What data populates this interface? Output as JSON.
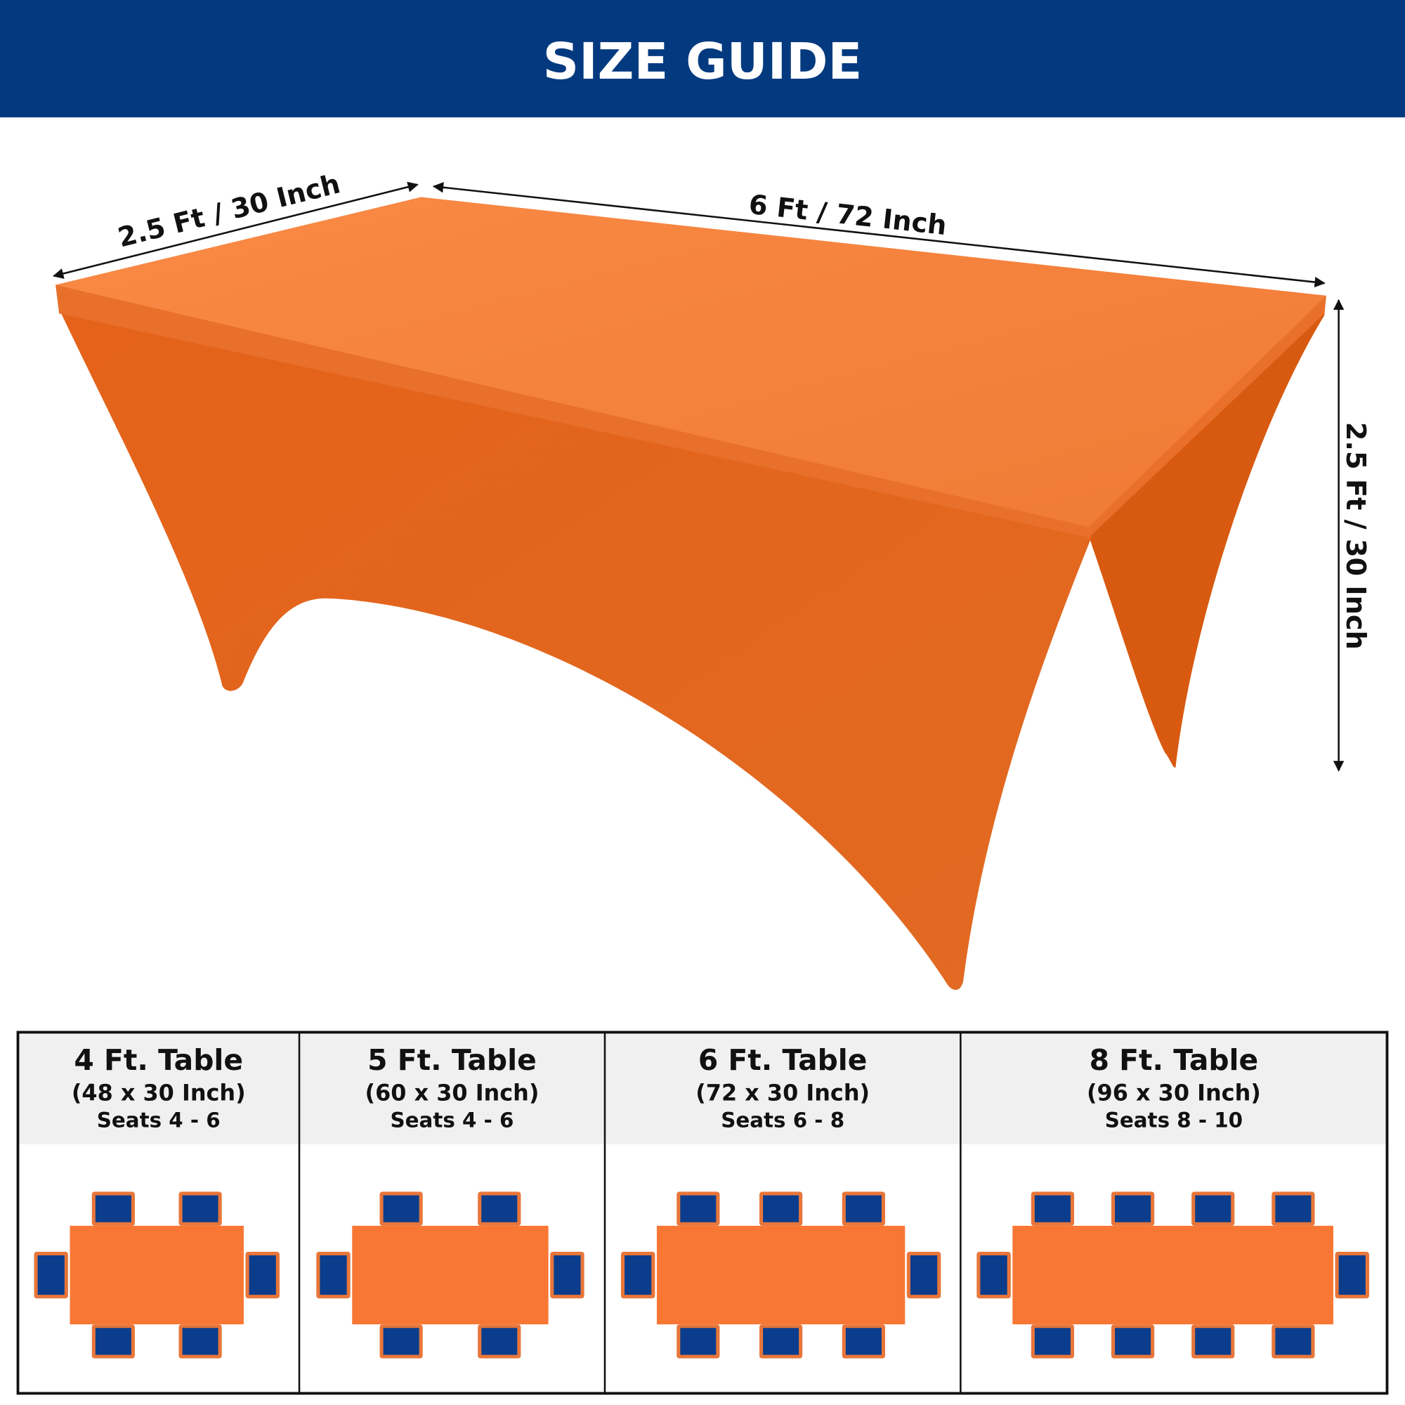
{
  "header": {
    "title": "SIZE GUIDE"
  },
  "dimensions": {
    "width": "2.5 Ft / 30 Inch",
    "length": "6 Ft / 72 Inch",
    "height": "2.5 Ft / 30 Inch"
  },
  "sizes": [
    {
      "name": "4 Ft. Table",
      "size": "(48 x 30 Inch)",
      "seats": "Seats 4 - 6"
    },
    {
      "name": "5 Ft. Table",
      "size": "(60 x 30 Inch)",
      "seats": "Seats 4 - 6"
    },
    {
      "name": "6 Ft. Table",
      "size": "(72 x 30 Inch)",
      "seats": "Seats 6 - 8"
    },
    {
      "name": "8 Ft. Table",
      "size": "(96 x 30 Inch)",
      "seats": "Seats 8 - 10"
    }
  ]
}
